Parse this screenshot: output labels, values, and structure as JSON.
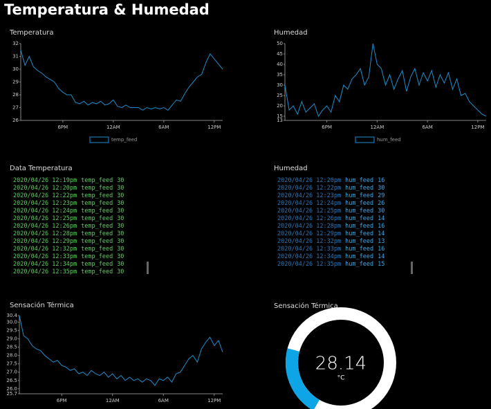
{
  "title": "Temperatura & Humedad",
  "chart_data": [
    {
      "type": "line",
      "title": "Temperatura",
      "categories": [
        null,
        null,
        null,
        null,
        null,
        null,
        null,
        null,
        null,
        null,
        "6PM",
        null,
        null,
        null,
        null,
        null,
        null,
        null,
        null,
        null,
        null,
        null,
        "12AM",
        null,
        null,
        null,
        null,
        null,
        null,
        null,
        null,
        null,
        null,
        null,
        "6AM",
        null,
        null,
        null,
        null,
        null,
        null,
        null,
        null,
        null,
        null,
        null,
        "12PM",
        null,
        null
      ],
      "series": [
        {
          "name": "temp_feed",
          "color": "#1a8fd0",
          "values": [
            31.5,
            30.3,
            31.0,
            30.2,
            29.9,
            29.7,
            29.4,
            29.2,
            29.0,
            28.5,
            28.2,
            28.0,
            28.0,
            27.4,
            27.3,
            27.5,
            27.2,
            27.4,
            27.3,
            27.5,
            27.2,
            27.3,
            27.6,
            27.1,
            27.0,
            27.2,
            27.0,
            27.0,
            27.0,
            26.8,
            27.0,
            26.9,
            27.0,
            26.9,
            27.0,
            26.8,
            27.2,
            27.6,
            27.5,
            28.1,
            28.6,
            29.0,
            29.4,
            29.6,
            30.5,
            31.2,
            30.8,
            30.4,
            30.0
          ]
        }
      ],
      "ylim": [
        26,
        32
      ],
      "yticks": [
        26,
        27,
        28,
        29,
        30,
        31,
        32
      ],
      "legend": "bottom"
    },
    {
      "type": "line",
      "title": "Humedad",
      "categories": [
        null,
        null,
        null,
        null,
        null,
        null,
        null,
        null,
        null,
        null,
        "6PM",
        null,
        null,
        null,
        null,
        null,
        null,
        null,
        null,
        null,
        null,
        null,
        "12AM",
        null,
        null,
        null,
        null,
        null,
        null,
        null,
        null,
        null,
        null,
        null,
        "6AM",
        null,
        null,
        null,
        null,
        null,
        null,
        null,
        null,
        null,
        null,
        null,
        "12PM",
        null,
        null
      ],
      "series": [
        {
          "name": "hum_feed",
          "color": "#1a8fd0",
          "values": [
            30,
            18,
            20,
            16,
            22,
            17,
            19,
            21,
            15,
            18,
            20,
            17,
            25,
            22,
            30,
            28,
            33,
            35,
            38,
            30,
            34,
            50,
            40,
            38,
            30,
            35,
            28,
            33,
            37,
            27,
            34,
            38,
            30,
            36,
            32,
            37,
            29,
            35,
            31,
            36,
            28,
            33,
            25,
            26,
            22,
            20,
            18,
            16,
            15
          ]
        }
      ],
      "ylim": [
        13,
        50
      ],
      "yticks": [
        13,
        15,
        20,
        25,
        30,
        35,
        40,
        45,
        50
      ],
      "legend": "bottom"
    },
    {
      "type": "line",
      "title": "Sensación Térmica",
      "categories": [
        null,
        null,
        null,
        null,
        null,
        null,
        null,
        null,
        null,
        null,
        "6PM",
        null,
        null,
        null,
        null,
        null,
        null,
        null,
        null,
        null,
        null,
        null,
        "12AM",
        null,
        null,
        null,
        null,
        null,
        null,
        null,
        null,
        null,
        null,
        null,
        "6AM",
        null,
        null,
        null,
        null,
        null,
        null,
        null,
        null,
        null,
        null,
        null,
        "12PM",
        null,
        null
      ],
      "series": [
        {
          "color": "#1a8fd0",
          "values": [
            30.4,
            29.2,
            29.0,
            28.6,
            28.4,
            28.3,
            28.0,
            27.8,
            27.6,
            27.7,
            27.4,
            27.3,
            27.1,
            27.2,
            26.9,
            27.0,
            26.8,
            27.1,
            26.9,
            26.8,
            27.0,
            26.7,
            26.9,
            26.6,
            26.8,
            26.5,
            26.7,
            26.5,
            26.6,
            26.4,
            26.6,
            26.5,
            26.2,
            26.6,
            26.5,
            26.7,
            26.4,
            26.9,
            27.0,
            27.4,
            27.8,
            28.0,
            27.6,
            28.4,
            28.8,
            29.1,
            28.6,
            28.9,
            28.2
          ]
        }
      ],
      "ylim": [
        25.7,
        30.4
      ],
      "yticks": [
        25.7,
        {
          "value": 26,
          "label": "26.0"
        },
        26.5,
        {
          "value": 27,
          "label": "27.0"
        },
        27.5,
        {
          "value": 28,
          "label": "28.0"
        },
        28.5,
        {
          "value": 29,
          "label": "29.0"
        },
        29.5,
        {
          "value": 30,
          "label": "30.0"
        },
        30.4
      ]
    }
  ],
  "logs": [
    {
      "title": "Data Temperatura",
      "rows": [
        [
          "2020/04/26 12:19pm",
          "temp_feed",
          30
        ],
        [
          "2020/04/26 12:20pm",
          "temp_feed",
          30
        ],
        [
          "2020/04/26 12:22pm",
          "temp_feed",
          30
        ],
        [
          "2020/04/26 12:23pm",
          "temp_feed",
          30
        ],
        [
          "2020/04/26 12:24pm",
          "temp_feed",
          30
        ],
        [
          "2020/04/26 12:25pm",
          "temp_feed",
          30
        ],
        [
          "2020/04/26 12:26pm",
          "temp_feed",
          30
        ],
        [
          "2020/04/26 12:28pm",
          "temp_feed",
          30
        ],
        [
          "2020/04/26 12:29pm",
          "temp_feed",
          30
        ],
        [
          "2020/04/26 12:32pm",
          "temp_feed",
          30
        ],
        [
          "2020/04/26 12:33pm",
          "temp_feed",
          30
        ],
        [
          "2020/04/26 12:34pm",
          "temp_feed",
          30
        ],
        [
          "2020/04/26 12:35pm",
          "temp_feed",
          30
        ]
      ]
    },
    {
      "title": "Humedad",
      "rows": [
        [
          "2020/04/26 12:20pm",
          "hum_feed",
          16
        ],
        [
          "2020/04/26 12:22pm",
          "hum_feed",
          30
        ],
        [
          "2020/04/26 12:23pm",
          "hum_feed",
          29
        ],
        [
          "2020/04/26 12:24pm",
          "hum_feed",
          26
        ],
        [
          "2020/04/26 12:25pm",
          "hum_feed",
          30
        ],
        [
          "2020/04/26 12:26pm",
          "hum_feed",
          14
        ],
        [
          "2020/04/26 12:28pm",
          "hum_feed",
          16
        ],
        [
          "2020/04/26 12:29pm",
          "hum_feed",
          14
        ],
        [
          "2020/04/26 12:32pm",
          "hum_feed",
          13
        ],
        [
          "2020/04/26 12:33pm",
          "hum_feed",
          16
        ],
        [
          "2020/04/26 12:34pm",
          "hum_feed",
          14
        ],
        [
          "2020/04/26 12:35pm",
          "hum_feed",
          15
        ]
      ]
    }
  ],
  "gauge": {
    "title": "Sensación Térmica",
    "value": 28.14,
    "unit": "°C"
  }
}
